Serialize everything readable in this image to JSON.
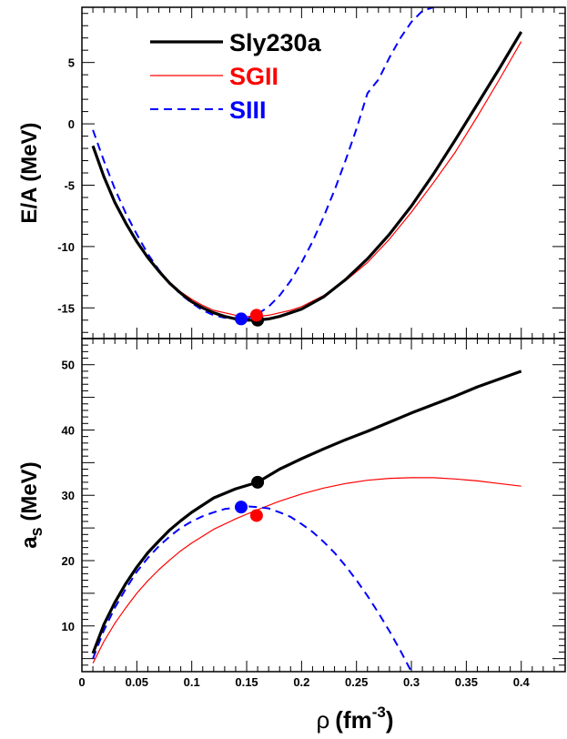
{
  "chart_data": [
    {
      "type": "line",
      "title": "",
      "xlabel": "ρ (fm^-3)",
      "ylabel": "E/A (MeV)",
      "ylabel_text": "E/A (MeV)",
      "xlim": [
        0,
        0.44
      ],
      "ylim": [
        -17.5,
        9.5
      ],
      "yticks": [
        -15,
        -10,
        -5,
        0,
        5
      ],
      "ytick_labels": [
        "-15",
        "-10",
        "-5",
        "0",
        "5"
      ],
      "legend": {
        "placement": "top-left",
        "entries": [
          {
            "label": "Sly230a",
            "color": "#000000",
            "style": "solid-thick",
            "series": "Sly230a"
          },
          {
            "label": "SGII",
            "color": "#ff0000",
            "style": "solid-thin",
            "series": "SGII"
          },
          {
            "label": "SIII",
            "color": "#0000ff",
            "style": "dashed",
            "series": "SIII"
          }
        ]
      },
      "series": [
        {
          "name": "Sly230a",
          "color": "#000000",
          "x": [
            0.01,
            0.02,
            0.03,
            0.04,
            0.05,
            0.06,
            0.07,
            0.08,
            0.09,
            0.1,
            0.11,
            0.12,
            0.13,
            0.14,
            0.15,
            0.16,
            0.17,
            0.18,
            0.19,
            0.2,
            0.22,
            0.24,
            0.26,
            0.28,
            0.3,
            0.32,
            0.34,
            0.36,
            0.38,
            0.4
          ],
          "values": [
            -1.8,
            -4.3,
            -6.4,
            -8.1,
            -9.6,
            -10.9,
            -12.0,
            -13.0,
            -13.8,
            -14.5,
            -15.0,
            -15.4,
            -15.7,
            -15.9,
            -16.0,
            -16.0,
            -15.9,
            -15.7,
            -15.4,
            -15.1,
            -14.1,
            -12.7,
            -11.0,
            -9.0,
            -6.7,
            -4.1,
            -1.3,
            1.6,
            4.5,
            7.5
          ],
          "marker": {
            "x": 0.16,
            "y": -16.0
          }
        },
        {
          "name": "SGII",
          "color": "#ff0000",
          "x": [
            0.01,
            0.02,
            0.03,
            0.04,
            0.05,
            0.06,
            0.07,
            0.08,
            0.09,
            0.1,
            0.11,
            0.12,
            0.13,
            0.14,
            0.15,
            0.16,
            0.17,
            0.18,
            0.19,
            0.2,
            0.22,
            0.24,
            0.26,
            0.28,
            0.3,
            0.32,
            0.34,
            0.36,
            0.38,
            0.4
          ],
          "values": [
            -1.8,
            -4.2,
            -6.3,
            -8.0,
            -9.5,
            -10.8,
            -11.9,
            -12.9,
            -13.7,
            -14.3,
            -14.8,
            -15.2,
            -15.4,
            -15.6,
            -15.7,
            -15.7,
            -15.6,
            -15.4,
            -15.2,
            -14.9,
            -14.0,
            -12.8,
            -11.3,
            -9.4,
            -7.2,
            -4.8,
            -2.3,
            0.6,
            3.6,
            6.7
          ],
          "marker": {
            "x": 0.159,
            "y": -15.6
          }
        },
        {
          "name": "SIII",
          "color": "#0000ff",
          "x": [
            0.01,
            0.02,
            0.03,
            0.04,
            0.05,
            0.06,
            0.07,
            0.08,
            0.09,
            0.1,
            0.11,
            0.12,
            0.13,
            0.14,
            0.15,
            0.16,
            0.17,
            0.18,
            0.19,
            0.2,
            0.21,
            0.22,
            0.23,
            0.24,
            0.25,
            0.26,
            0.27,
            0.28,
            0.29,
            0.3,
            0.31,
            0.32
          ],
          "values": [
            -0.5,
            -3.0,
            -5.3,
            -7.3,
            -9.0,
            -10.6,
            -11.9,
            -13.0,
            -13.9,
            -14.6,
            -15.2,
            -15.6,
            -15.8,
            -15.9,
            -15.9,
            -15.5,
            -14.9,
            -14.0,
            -12.8,
            -11.3,
            -9.6,
            -7.6,
            -5.4,
            -3.0,
            -0.4,
            2.5,
            3.6,
            5.4,
            7.0,
            8.3,
            9.2,
            9.5
          ],
          "marker": {
            "x": 0.145,
            "y": -15.9
          }
        }
      ]
    },
    {
      "type": "line",
      "title": "",
      "xlabel": "ρ (fm^-3)",
      "ylabel": "a_s (MeV)",
      "xlim": [
        0,
        0.44
      ],
      "ylim": [
        3,
        54
      ],
      "yticks": [
        10,
        20,
        30,
        40,
        50
      ],
      "ytick_labels": [
        "10",
        "20",
        "30",
        "40",
        "50"
      ],
      "xticks": [
        0,
        0.05,
        0.1,
        0.15,
        0.2,
        0.25,
        0.3,
        0.35,
        0.4
      ],
      "xtick_labels": [
        "0",
        "0.05",
        "0.1",
        "0.15",
        "0.2",
        "0.25",
        "0.3",
        "0.35",
        "0.4"
      ],
      "series": [
        {
          "name": "Sly230a",
          "color": "#000000",
          "x": [
            0.01,
            0.02,
            0.03,
            0.04,
            0.05,
            0.06,
            0.07,
            0.08,
            0.09,
            0.1,
            0.12,
            0.14,
            0.16,
            0.18,
            0.2,
            0.22,
            0.24,
            0.26,
            0.28,
            0.3,
            0.32,
            0.34,
            0.36,
            0.38,
            0.4
          ],
          "values": [
            5.8,
            10.2,
            13.6,
            16.5,
            19.0,
            21.2,
            23.0,
            24.7,
            26.1,
            27.4,
            29.6,
            31.0,
            32.0,
            34.0,
            35.6,
            37.1,
            38.5,
            39.8,
            41.2,
            42.6,
            43.9,
            45.2,
            46.6,
            47.8,
            49.0
          ],
          "marker": {
            "x": 0.16,
            "y": 32.0
          }
        },
        {
          "name": "SGII",
          "color": "#ff0000",
          "x": [
            0.01,
            0.02,
            0.03,
            0.04,
            0.05,
            0.06,
            0.07,
            0.08,
            0.09,
            0.1,
            0.12,
            0.14,
            0.16,
            0.18,
            0.2,
            0.22,
            0.24,
            0.26,
            0.28,
            0.3,
            0.32,
            0.34,
            0.36,
            0.38,
            0.4
          ],
          "values": [
            4.3,
            7.6,
            10.4,
            12.8,
            15.0,
            16.9,
            18.6,
            20.1,
            21.5,
            22.7,
            24.8,
            26.4,
            27.8,
            29.1,
            30.2,
            31.1,
            31.8,
            32.3,
            32.6,
            32.7,
            32.7,
            32.5,
            32.2,
            31.8,
            31.4
          ],
          "marker": {
            "x": 0.159,
            "y": 26.9
          }
        },
        {
          "name": "SIII",
          "color": "#0000ff",
          "x": [
            0.01,
            0.02,
            0.03,
            0.04,
            0.05,
            0.06,
            0.07,
            0.08,
            0.09,
            0.1,
            0.11,
            0.12,
            0.13,
            0.14,
            0.15,
            0.16,
            0.17,
            0.18,
            0.19,
            0.2,
            0.21,
            0.22,
            0.23,
            0.24,
            0.25,
            0.26,
            0.27,
            0.28,
            0.29,
            0.3
          ],
          "values": [
            5.0,
            9.3,
            12.8,
            15.7,
            18.3,
            20.4,
            22.2,
            23.7,
            25.0,
            26.0,
            26.8,
            27.4,
            27.9,
            28.1,
            28.3,
            28.2,
            28.0,
            27.4,
            26.7,
            25.6,
            24.4,
            22.9,
            21.2,
            19.2,
            17.0,
            14.6,
            12.0,
            9.2,
            6.2,
            3.0
          ],
          "marker": {
            "x": 0.145,
            "y": 28.2
          }
        }
      ]
    }
  ],
  "xaxis_title": {
    "symbol": "ρ",
    "unit": "(fm",
    "exponent": "-3",
    "close": ")"
  },
  "panel_top": {
    "ylabel": "E/A (MeV)"
  },
  "panel_bottom": {
    "ylabel_main": "a",
    "ylabel_sub": "s",
    "ylabel_rest": " (MeV)"
  }
}
